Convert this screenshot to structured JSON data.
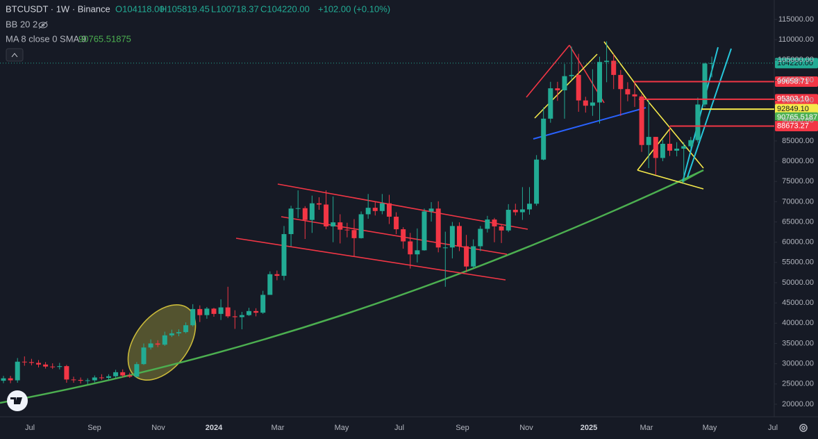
{
  "header": {
    "symbol": "BTCUSDT · 1W · Binance",
    "open": "O104118.00",
    "high": "H105819.45",
    "low": "L100718.37",
    "close": "C104220.00",
    "change": "+102.00 (+0.10%)",
    "bb": "BB 20 2",
    "ma": "MA 8 close 0 SMA 9",
    "ma_value": "90765.51875"
  },
  "chart_data": {
    "type": "candlestick",
    "open": [
      25800,
      26400,
      25900,
      30500,
      30400,
      30200,
      29800,
      29300,
      29200,
      29400,
      26100,
      26000,
      25800,
      25900,
      26600,
      26500,
      26900,
      27900,
      27100,
      26800,
      29900,
      34000,
      35000,
      34700,
      37000,
      37500,
      37800,
      39500,
      43500,
      42000,
      43600,
      42300,
      43900,
      41700,
      41500,
      42000,
      43000,
      42600,
      47000,
      52100,
      51700,
      62000,
      68300,
      68400,
      65500,
      69600,
      69300,
      63900,
      64900,
      63100,
      63000,
      61000,
      66900,
      68500,
      67700,
      69600,
      66300,
      63200,
      60200,
      57000,
      58000,
      67600,
      68300,
      58700,
      58700,
      64000,
      59000,
      54000,
      59000,
      63300,
      65600,
      63900,
      62900,
      68000,
      67400,
      68100,
      69500,
      80400,
      90500,
      98000,
      97500,
      101000,
      101300,
      95000,
      93700,
      94500,
      104500,
      104800,
      101300,
      97800,
      96500,
      96000,
      84000,
      86000,
      80800,
      84300,
      82600,
      83100,
      83700,
      85200,
      94000,
      104118
    ],
    "high": [
      27000,
      27000,
      31400,
      31800,
      31200,
      30900,
      30400,
      30100,
      30200,
      29700,
      26800,
      26600,
      26400,
      27100,
      27400,
      27400,
      28500,
      28600,
      27800,
      30400,
      35000,
      36000,
      35800,
      37900,
      38400,
      38500,
      40200,
      44700,
      44400,
      44000,
      43800,
      45900,
      49000,
      43200,
      42800,
      43800,
      43700,
      48000,
      52800,
      53000,
      64000,
      69000,
      72800,
      68900,
      71500,
      71100,
      72800,
      71300,
      66900,
      64800,
      65700,
      67600,
      71900,
      70000,
      71900,
      71700,
      67400,
      63700,
      62300,
      63400,
      68300,
      69900,
      70100,
      62600,
      65000,
      64900,
      61800,
      60700,
      64000,
      66500,
      66000,
      64400,
      69400,
      69500,
      73600,
      73600,
      81500,
      93300,
      99600,
      99600,
      104000,
      108300,
      106500,
      95900,
      102700,
      105800,
      109600,
      106400,
      102500,
      99500,
      99500,
      96500,
      95000,
      86000,
      85300,
      88700,
      84700,
      84700,
      86000,
      95700,
      104300,
      105819.45
    ],
    "low": [
      25200,
      25200,
      25300,
      29500,
      29600,
      29100,
      28800,
      28700,
      28600,
      25300,
      25300,
      25100,
      24900,
      25400,
      26000,
      26000,
      26500,
      26600,
      26500,
      26600,
      29700,
      33500,
      34100,
      34400,
      36600,
      36800,
      37500,
      39200,
      40300,
      41100,
      41600,
      40800,
      41300,
      38600,
      38500,
      41800,
      41700,
      42300,
      47000,
      50600,
      50600,
      59000,
      66000,
      60800,
      62300,
      68000,
      63200,
      60000,
      59700,
      61200,
      56500,
      60900,
      65800,
      66600,
      66900,
      64500,
      62000,
      58400,
      53500,
      55000,
      57900,
      65100,
      57500,
      49000,
      56000,
      57800,
      52600,
      53600,
      57800,
      62400,
      60000,
      59800,
      62500,
      66600,
      65500,
      66800,
      69000,
      80200,
      89500,
      94900,
      90500,
      100000,
      92200,
      92000,
      91200,
      89300,
      99500,
      97800,
      91200,
      94800,
      93400,
      82300,
      78300,
      76600,
      80000,
      81300,
      81200,
      74500,
      83200,
      84600,
      93400,
      100718.37
    ],
    "close": [
      26400,
      25900,
      30500,
      30400,
      30200,
      29800,
      29300,
      29200,
      29400,
      26100,
      26000,
      25800,
      25900,
      26600,
      26500,
      26900,
      27900,
      27100,
      26800,
      29900,
      34000,
      35000,
      34700,
      37000,
      37500,
      37800,
      39500,
      43500,
      42000,
      43600,
      42300,
      43900,
      41700,
      41500,
      42000,
      43000,
      42600,
      47000,
      52100,
      51700,
      62000,
      68300,
      68400,
      65500,
      69600,
      69300,
      63900,
      64900,
      63100,
      63000,
      61000,
      66900,
      68500,
      67700,
      69600,
      66300,
      63200,
      60200,
      57000,
      58000,
      67600,
      68300,
      58700,
      58700,
      64000,
      59000,
      54000,
      59000,
      63300,
      65600,
      63900,
      62900,
      68000,
      67400,
      68100,
      69500,
      80400,
      90500,
      98000,
      97500,
      101000,
      101300,
      95000,
      93700,
      94500,
      104500,
      104800,
      101300,
      97800,
      96500,
      96000,
      84000,
      86000,
      80800,
      84300,
      82600,
      83100,
      83700,
      85200,
      94000,
      104118,
      104220
    ],
    "up_color": "#22ab94",
    "down_color": "#f23645",
    "ylim": [
      16900,
      119800
    ],
    "yticks": [
      {
        "value": 20000,
        "label": "20000.00"
      },
      {
        "value": 25000,
        "label": "25000.00"
      },
      {
        "value": 30000,
        "label": "30000.00"
      },
      {
        "value": 35000,
        "label": "35000.00"
      },
      {
        "value": 40000,
        "label": "40000.00"
      },
      {
        "value": 45000,
        "label": "45000.00"
      },
      {
        "value": 50000,
        "label": "50000.00"
      },
      {
        "value": 55000,
        "label": "55000.00"
      },
      {
        "value": 60000,
        "label": "60000.00"
      },
      {
        "value": 65000,
        "label": "65000.00"
      },
      {
        "value": 70000,
        "label": "70000.00"
      },
      {
        "value": 75000,
        "label": "75000.00"
      },
      {
        "value": 80000,
        "label": "80000.00"
      },
      {
        "value": 85000,
        "label": "85000.00"
      },
      {
        "value": 90000,
        "label": "90000.00"
      },
      {
        "value": 95000,
        "label": "95000.00"
      },
      {
        "value": 100000,
        "label": "100000.00"
      },
      {
        "value": 105000,
        "label": "105000.00"
      },
      {
        "value": 110000,
        "label": "110000.00"
      },
      {
        "value": 115000,
        "label": "115000.00"
      }
    ],
    "xticks": [
      "Jul",
      "Sep",
      "Nov",
      "2024",
      "Mar",
      "May",
      "Jul",
      "Sep",
      "Nov",
      "2025",
      "Mar",
      "May",
      "Jul"
    ],
    "price_labels": [
      {
        "value": 104220,
        "label": "104220.00",
        "color": "#22ab94"
      },
      {
        "value": 99658.71,
        "label": "99658.71",
        "color": "#f23645"
      },
      {
        "value": 95303.1,
        "label": "95303.10",
        "color": "#f23645"
      },
      {
        "value": 92849.1,
        "label": "92849.10",
        "color": "#f5e94b"
      },
      {
        "value": 90765.5187,
        "label": "90765.5187",
        "color": "#4caf50"
      },
      {
        "value": 88673.27,
        "label": "88673.27",
        "color": "#f23645"
      }
    ]
  }
}
